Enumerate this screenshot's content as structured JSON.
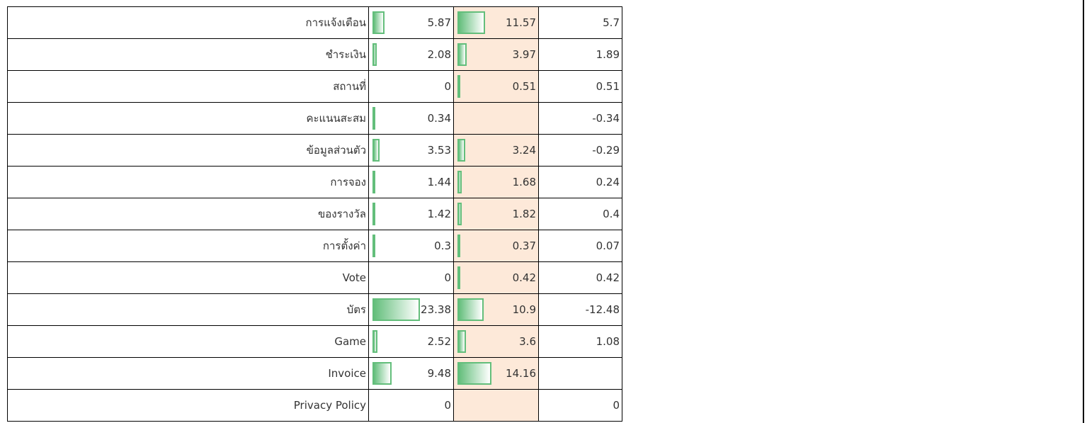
{
  "rows": [
    {
      "label": "การแจ้งเตือน",
      "values": [
        5.87,
        11.57,
        5.7
      ]
    },
    {
      "label": "ชำระเงิน",
      "values": [
        2.08,
        3.97,
        1.89
      ]
    },
    {
      "label": "สถานที่",
      "values": [
        0,
        0.51,
        0.51
      ]
    },
    {
      "label": "คะแนนสะสม",
      "values": [
        0.34,
        null,
        -0.34
      ]
    },
    {
      "label": "ข้อมูลส่วนตัว",
      "values": [
        3.53,
        3.24,
        -0.29
      ]
    },
    {
      "label": "การจอง",
      "values": [
        1.44,
        1.68,
        0.24
      ]
    },
    {
      "label": "ของรางวัล",
      "values": [
        1.42,
        1.82,
        0.4
      ]
    },
    {
      "label": "การตั้งค่า",
      "values": [
        0.3,
        0.37,
        0.07
      ]
    },
    {
      "label": "Vote",
      "values": [
        0,
        0.42,
        0.42
      ]
    },
    {
      "label": "บัตร",
      "values": [
        23.38,
        10.9,
        -12.48
      ]
    },
    {
      "label": "Game",
      "values": [
        2.52,
        3.6,
        1.08
      ]
    },
    {
      "label": "Invoice",
      "values": [
        9.48,
        14.16,
        null
      ]
    },
    {
      "label": "Privacy Policy",
      "values": [
        0,
        null,
        0
      ]
    }
  ]
}
